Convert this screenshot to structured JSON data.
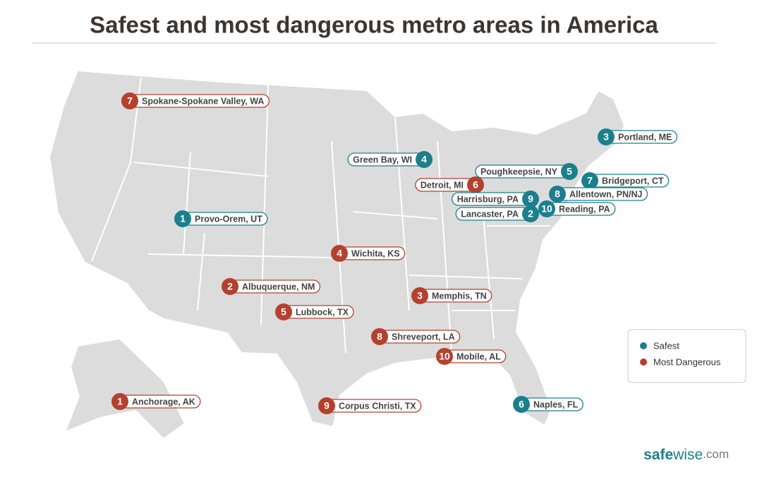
{
  "title": "Safest and most dangerous metro areas in America",
  "legend": [
    {
      "label": "Safest",
      "color": "#1b7f8c"
    },
    {
      "label": "Most Dangerous",
      "color": "#b5402e"
    }
  ],
  "markers": [
    {
      "rank": 1,
      "label": "Anchorage, AK",
      "group": 1
    },
    {
      "rank": 2,
      "label": "Albuquerque, NM",
      "group": 1
    },
    {
      "rank": 3,
      "label": "Memphis, TN",
      "group": 1
    },
    {
      "rank": 4,
      "label": "Wichita, KS",
      "group": 1
    },
    {
      "rank": 5,
      "label": "Lubbock, TX",
      "group": 1
    },
    {
      "rank": 6,
      "label": "Detroit, MI",
      "group": 1
    },
    {
      "rank": 7,
      "label": "Spokane-Spokane Valley, WA",
      "group": 1
    },
    {
      "rank": 8,
      "label": "Shreveport, LA",
      "group": 1
    },
    {
      "rank": 9,
      "label": "Corpus Christi, TX",
      "group": 1
    },
    {
      "rank": 10,
      "label": "Mobile, AL",
      "group": 1
    },
    {
      "rank": 1,
      "label": "Provo-Orem, UT",
      "group": 0
    },
    {
      "rank": 2,
      "label": "Lancaster, PA",
      "group": 0
    },
    {
      "rank": 3,
      "label": "Portland, ME",
      "group": 0
    },
    {
      "rank": 4,
      "label": "Green Bay, WI",
      "group": 0
    },
    {
      "rank": 5,
      "label": "Poughkeepsie, NY",
      "group": 0
    },
    {
      "rank": 6,
      "label": "Naples, FL",
      "group": 0
    },
    {
      "rank": 7,
      "label": "Bridgeport, CT",
      "group": 0
    },
    {
      "rank": 8,
      "label": "Allentown, PN/NJ",
      "group": 0
    },
    {
      "rank": 9,
      "label": "Harrisburg, PA",
      "group": 0
    },
    {
      "rank": 10,
      "label": "Reading, PA",
      "group": 0
    }
  ],
  "brand": [
    "safe",
    "wise",
    ".com"
  ]
}
